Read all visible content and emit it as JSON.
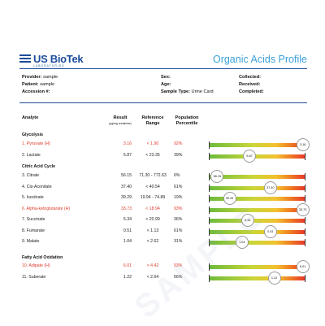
{
  "header": {
    "logo_name": "US BioTek",
    "logo_sub": "LABORATORIES",
    "title": "Organic Acids Profile"
  },
  "info": {
    "provider_label": "Provider:",
    "provider_value": "sample",
    "patient_label": "Patient:",
    "patient_value": "sample",
    "accession_label": "Accession #:",
    "accession_value": "",
    "sex_label": "Sex:",
    "sex_value": "",
    "age_label": "Age:",
    "age_value": "",
    "sample_type_label": "Sample Type:",
    "sample_type_value": "Urine Card",
    "collected_label": "Collected:",
    "collected_value": "",
    "received_label": "Received:",
    "received_value": "",
    "completed_label": "Completed:",
    "completed_value": ""
  },
  "columns": {
    "analyte": "Analyte",
    "result": "Result",
    "result_unit": "(µg/mg creatinine)",
    "reference_1": "Reference",
    "reference_2": "Range",
    "population_1": "Population",
    "population_2": "Percentile"
  },
  "sections": [
    {
      "title": "Glycolysis",
      "rows": [
        {
          "name": "1. Pyruvate (H)",
          "result": "3.16",
          "ref": "< 1.90",
          "pct": "92%",
          "marker": "3.16",
          "pos": 0.98,
          "high": true
        },
        {
          "name": "2. Lactate",
          "result": "5.87",
          "ref": "< 23.35",
          "pct": "39%",
          "marker": "5.87",
          "pos": 0.42,
          "high": false
        }
      ]
    },
    {
      "title": "Citric Acid Cycle",
      "rows": [
        {
          "name": "3. Citrate",
          "result": "56.15",
          "ref": "71.30 - 772.63",
          "pct": "6%",
          "marker": "56.15",
          "pos": 0.08,
          "high": false
        },
        {
          "name": "4. Cis-Aconitate",
          "result": "37.40",
          "ref": "< 40.54",
          "pct": "61%",
          "marker": "37.40",
          "pos": 0.64,
          "high": false
        },
        {
          "name": "5. Isocitrate",
          "result": "39.29",
          "ref": "19.94 - 74.89",
          "pct": "19%",
          "marker": "39.29",
          "pos": 0.21,
          "high": false
        },
        {
          "name": "6. Alpha-ketoglutarate (H)",
          "result": "33.73",
          "ref": "< 18.94",
          "pct": "93%",
          "marker": "33.73",
          "pos": 0.98,
          "high": true
        },
        {
          "name": "7. Succinate",
          "result": "5.34",
          "ref": "< 20.99",
          "pct": "36%",
          "marker": "5.34",
          "pos": 0.4,
          "high": false
        },
        {
          "name": "8. Fumarate",
          "result": "0.51",
          "ref": "< 1.13",
          "pct": "61%",
          "marker": "0.51",
          "pos": 0.64,
          "high": false
        },
        {
          "name": "9. Malate",
          "result": "1.04",
          "ref": "< 2.62",
          "pct": "31%",
          "marker": "1.04",
          "pos": 0.34,
          "high": false
        }
      ]
    },
    {
      "title": "Fatty Acid Oxidation",
      "rows": [
        {
          "name": "10. Adipate (H)",
          "result": "6.01",
          "ref": "< 4.42",
          "pct": "93%",
          "marker": "6.01",
          "pos": 0.98,
          "high": true
        },
        {
          "name": "11. Suberate",
          "result": "1.22",
          "ref": "< 2.64",
          "pct": "66%",
          "marker": "1.22",
          "pos": 0.68,
          "high": false
        }
      ]
    }
  ],
  "watermark": "SAMPLE"
}
